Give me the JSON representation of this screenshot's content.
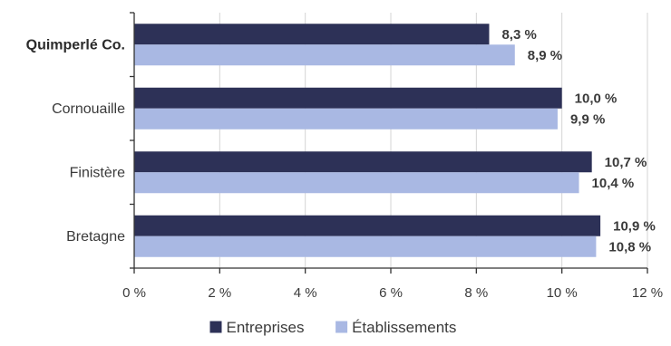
{
  "chart_data": {
    "type": "bar",
    "orientation": "horizontal",
    "categories": [
      "Quimperlé Co.",
      "Cornouaille",
      "Finistère",
      "Bretagne"
    ],
    "highlighted_category": "Quimperlé Co.",
    "series": [
      {
        "name": "Entreprises",
        "color": "#2d3157",
        "values": [
          8.3,
          10.0,
          10.7,
          10.9
        ],
        "labels": [
          "8,3 %",
          "10,0 %",
          "10,7 %",
          "10,9 %"
        ]
      },
      {
        "name": "Établissements",
        "color": "#a9b8e3",
        "values": [
          8.9,
          9.9,
          10.4,
          10.8
        ],
        "labels": [
          "8,9 %",
          "9,9 %",
          "10,4 %",
          "10,8 %"
        ]
      }
    ],
    "xlim": [
      0,
      12
    ],
    "xticks": [
      0,
      2,
      4,
      6,
      8,
      10,
      12
    ],
    "xtick_labels": [
      "0 %",
      "2 %",
      "4 %",
      "6 %",
      "8 %",
      "10 %",
      "12 %"
    ],
    "grid": "vertical",
    "legend_position": "bottom-center",
    "title": "",
    "xlabel": "",
    "ylabel": ""
  }
}
